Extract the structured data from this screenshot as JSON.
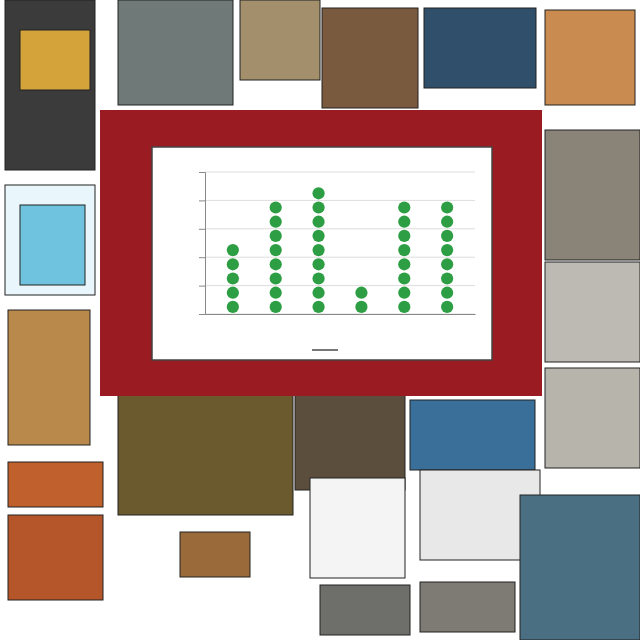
{
  "chart_data": {
    "type": "dot",
    "categories": [
      null,
      null,
      null,
      null,
      null,
      null
    ],
    "values": [
      5,
      8,
      9,
      2,
      8,
      8
    ],
    "color": "#2e9e44",
    "marker": "circle",
    "ylim": [
      0,
      10
    ],
    "yticks": [
      0,
      2,
      4,
      6,
      8,
      10
    ],
    "grid": true,
    "tick_labels": false
  }
}
